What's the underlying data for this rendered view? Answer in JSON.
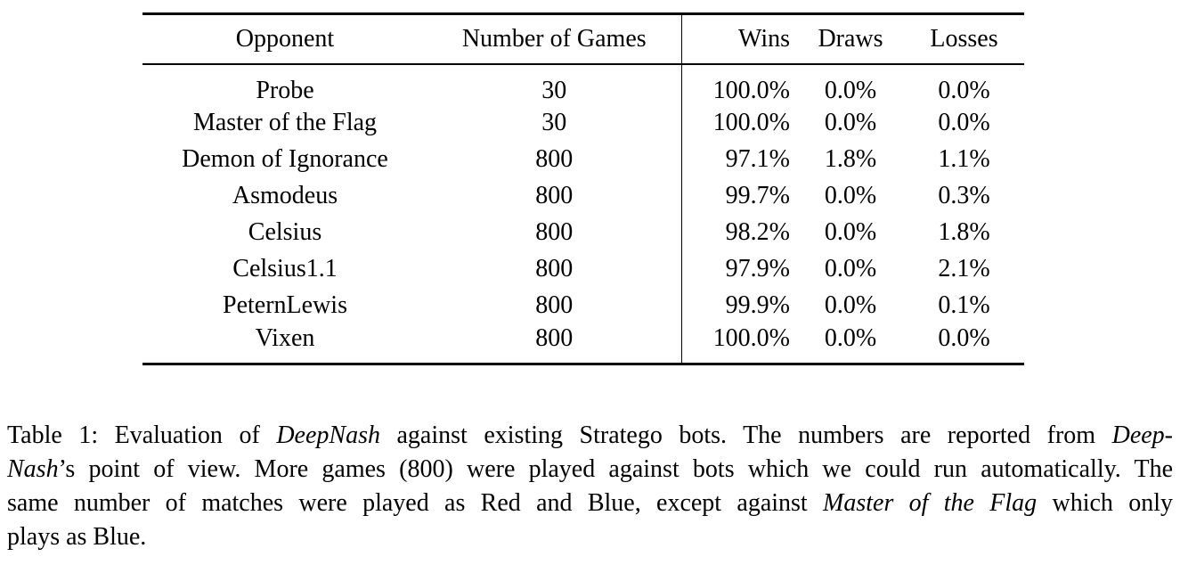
{
  "table": {
    "headers": [
      "Opponent",
      "Number of Games",
      "Wins",
      "Draws",
      "Losses"
    ],
    "rows": [
      [
        "Probe",
        "30",
        "100.0%",
        "0.0%",
        "0.0%"
      ],
      [
        "Master of the Flag",
        "30",
        "100.0%",
        "0.0%",
        "0.0%"
      ],
      [
        "Demon of Ignorance",
        "800",
        "97.1%",
        "1.8%",
        "1.1%"
      ],
      [
        "Asmodeus",
        "800",
        "99.7%",
        "0.0%",
        "0.3%"
      ],
      [
        "Celsius",
        "800",
        "98.2%",
        "0.0%",
        "1.8%"
      ],
      [
        "Celsius1.1",
        "800",
        "97.9%",
        "0.0%",
        "2.1%"
      ],
      [
        "PeternLewis",
        "800",
        "99.9%",
        "0.0%",
        "0.1%"
      ],
      [
        "Vixen",
        "800",
        "100.0%",
        "0.0%",
        "0.0%"
      ]
    ]
  },
  "caption": {
    "lines": [
      {
        "segs": [
          {
            "t": "Table 1: Evaluation of "
          },
          {
            "t": "DeepNash"
          },
          {
            "t": " against existing Stratego bots. The numbers are reported from "
          },
          {
            "t": "Deep-"
          }
        ]
      },
      {
        "segs": [
          {
            "t": "Nash"
          },
          {
            "t": "’s point of view. More games (800) were played against bots which we could run automatically. The"
          }
        ]
      },
      {
        "segs": [
          {
            "t": "same number of matches were played as Red and Blue, except against "
          },
          {
            "t": "Master of the Flag"
          },
          {
            "t": " which only"
          }
        ]
      },
      {
        "segs": [
          {
            "t": "plays as Blue."
          }
        ]
      }
    ]
  }
}
